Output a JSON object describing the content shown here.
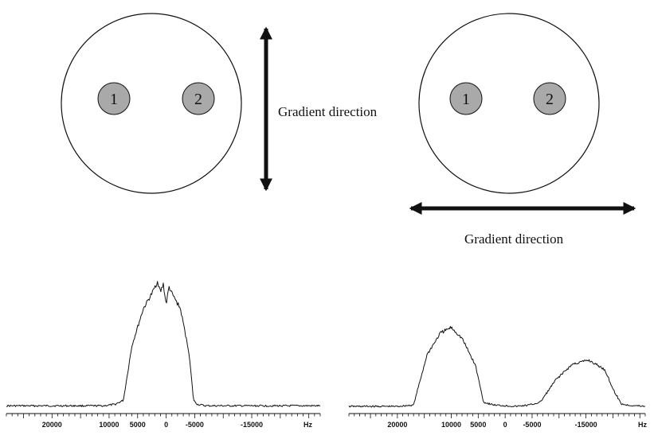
{
  "diagrams": [
    {
      "gradient": "vertical",
      "gradient_label": "Gradient direction",
      "samples": [
        {
          "label": "1"
        },
        {
          "label": "2"
        }
      ]
    },
    {
      "gradient": "horizontal",
      "gradient_label": "Gradient direction",
      "samples": [
        {
          "label": "1"
        },
        {
          "label": "2"
        }
      ]
    }
  ],
  "colors": {
    "ink": "#111111",
    "sample_fill": "#a9a9a9",
    "background": "#ffffff"
  },
  "chart_data": [
    {
      "type": "line",
      "x_reversed": true,
      "xlim": [
        28000,
        -27000
      ],
      "x_ticks": [
        20000,
        10000,
        5000,
        0,
        -5000,
        -15000
      ],
      "x_unit": "Hz",
      "x": [
        28000,
        13000,
        11000,
        9000,
        7500,
        6000,
        4000,
        2500,
        1500,
        1000,
        500,
        0,
        -500,
        -1000,
        -2500,
        -4000,
        -4800,
        -5500,
        -7000,
        -12000,
        -27000
      ],
      "y": [
        0.01,
        0.01,
        0.01,
        0.02,
        0.05,
        0.45,
        0.72,
        0.83,
        0.92,
        0.84,
        0.9,
        0.75,
        0.88,
        0.83,
        0.72,
        0.4,
        0.05,
        0.02,
        0.01,
        0.01,
        0.01
      ]
    },
    {
      "type": "line",
      "x_reversed": true,
      "xlim": [
        29000,
        -26000
      ],
      "x_ticks": [
        20000,
        10000,
        5000,
        0,
        -5000,
        -15000
      ],
      "x_unit": "Hz",
      "x": [
        29000,
        20000,
        17000,
        14500,
        12000,
        10000,
        8000,
        5500,
        4000,
        2000,
        -2000,
        -4500,
        -6500,
        -9500,
        -12500,
        -15500,
        -18500,
        -20000,
        -21500,
        -22500,
        -26000
      ],
      "y": [
        0.0,
        0.0,
        0.01,
        0.38,
        0.54,
        0.58,
        0.5,
        0.3,
        0.03,
        0.01,
        0.0,
        0.01,
        0.03,
        0.2,
        0.31,
        0.34,
        0.27,
        0.13,
        0.02,
        0.01,
        0.0
      ]
    }
  ]
}
